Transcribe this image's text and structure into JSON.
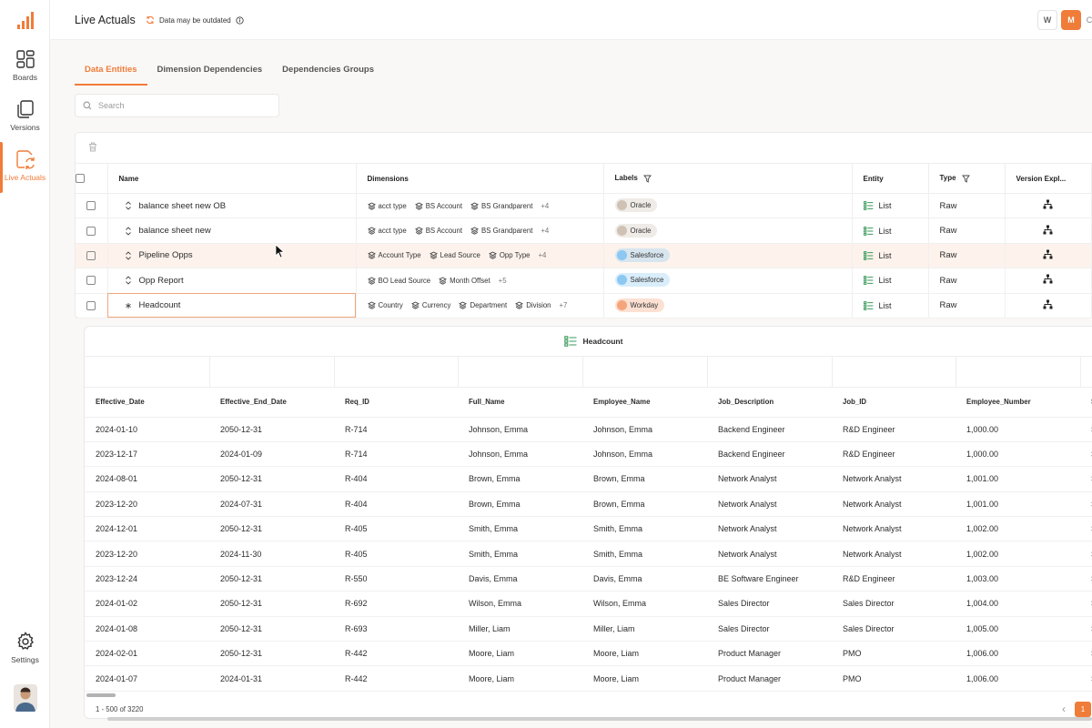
{
  "sidebar": {
    "items": [
      {
        "label": "Boards",
        "icon": "grid-icon"
      },
      {
        "label": "Versions",
        "icon": "copy-icon"
      },
      {
        "label": "Live Actuals",
        "icon": "live-actuals-icon"
      }
    ],
    "settings_label": "Settings"
  },
  "header": {
    "title": "Live Actuals",
    "status": "Data may be outdated",
    "btn_w": "W",
    "btn_m": "M",
    "btn_edge": "C"
  },
  "tabs": [
    "Data Entities",
    "Dimension Dependencies",
    "Dependencies Groups"
  ],
  "search": {
    "placeholder": "Search"
  },
  "entities": {
    "columns": [
      "Name",
      "Dimensions",
      "Labels",
      "Entity",
      "Type",
      "Version Expl..."
    ],
    "rows": [
      {
        "name": "balance sheet new OB",
        "dims": [
          "acct type",
          "BS Account",
          "BS Grandparent"
        ],
        "more": "+4",
        "label": "Oracle",
        "label_color": "#cfc2b5",
        "entity": "List",
        "type": "Raw"
      },
      {
        "name": "balance sheet new",
        "dims": [
          "acct type",
          "BS Account",
          "BS Grandparent"
        ],
        "more": "+4",
        "label": "Oracle",
        "label_color": "#cfc2b5",
        "entity": "List",
        "type": "Raw"
      },
      {
        "name": "Pipeline Opps",
        "dims": [
          "Account Type",
          "Lead Source",
          "Opp Type"
        ],
        "more": "+4",
        "label": "Salesforce",
        "label_color": "#8cc8f2",
        "entity": "List",
        "type": "Raw"
      },
      {
        "name": "Opp Report",
        "dims": [
          "BO Lead Source",
          "Month Offset"
        ],
        "more": "+5",
        "label": "Salesforce",
        "label_color": "#8cc8f2",
        "entity": "List",
        "type": "Raw"
      },
      {
        "name": "Headcount",
        "dims": [
          "Country",
          "Currency",
          "Department",
          "Division"
        ],
        "more": "+7",
        "label": "Workday",
        "label_color": "#f5a57c",
        "entity": "List",
        "type": "Raw"
      }
    ]
  },
  "preview": {
    "title": "Headcount",
    "columns": [
      "Effective_Date",
      "Effective_End_Date",
      "Req_ID",
      "Full_Name",
      "Employee_Name",
      "Job_Description",
      "Job_ID",
      "Employee_Number",
      "S"
    ],
    "rows": [
      [
        "2024-01-10",
        "2050-12-31",
        "R-714",
        "Johnson, Emma",
        "Johnson, Emma",
        "Backend Engineer",
        "R&D Engineer",
        "1,000.00",
        "S"
      ],
      [
        "2023-12-17",
        "2024-01-09",
        "R-714",
        "Johnson, Emma",
        "Johnson, Emma",
        "Backend Engineer",
        "R&D Engineer",
        "1,000.00",
        "S"
      ],
      [
        "2024-08-01",
        "2050-12-31",
        "R-404",
        "Brown, Emma",
        "Brown, Emma",
        "Network Analyst",
        "Network Analyst",
        "1,001.00",
        "S"
      ],
      [
        "2023-12-20",
        "2024-07-31",
        "R-404",
        "Brown, Emma",
        "Brown, Emma",
        "Network Analyst",
        "Network Analyst",
        "1,001.00",
        "S"
      ],
      [
        "2024-12-01",
        "2050-12-31",
        "R-405",
        "Smith, Emma",
        "Smith, Emma",
        "Network Analyst",
        "Network Analyst",
        "1,002.00",
        "S"
      ],
      [
        "2023-12-20",
        "2024-11-30",
        "R-405",
        "Smith, Emma",
        "Smith, Emma",
        "Network Analyst",
        "Network Analyst",
        "1,002.00",
        "S"
      ],
      [
        "2023-12-24",
        "2050-12-31",
        "R-550",
        "Davis, Emma",
        "Davis, Emma",
        "BE Software Engineer",
        "R&D Engineer",
        "1,003.00",
        "S"
      ],
      [
        "2024-01-02",
        "2050-12-31",
        "R-692",
        "Wilson, Emma",
        "Wilson, Emma",
        "Sales Director",
        "Sales Director",
        "1,004.00",
        "S"
      ],
      [
        "2024-01-08",
        "2050-12-31",
        "R-693",
        "Miller, Liam",
        "Miller, Liam",
        "Sales Director",
        "Sales Director",
        "1,005.00",
        "S"
      ],
      [
        "2024-02-01",
        "2050-12-31",
        "R-442",
        "Moore, Liam",
        "Moore, Liam",
        "Product Manager",
        "PMO",
        "1,006.00",
        "S"
      ],
      [
        "2024-01-07",
        "2024-01-31",
        "R-442",
        "Moore, Liam",
        "Moore, Liam",
        "Product Manager",
        "PMO",
        "1,006.00",
        "S"
      ]
    ],
    "page_count": "1 - 500 of 3220",
    "current_page": "1"
  },
  "colors": {
    "accent": "#f07c3a",
    "entity_icon": "#3a9a5b"
  }
}
